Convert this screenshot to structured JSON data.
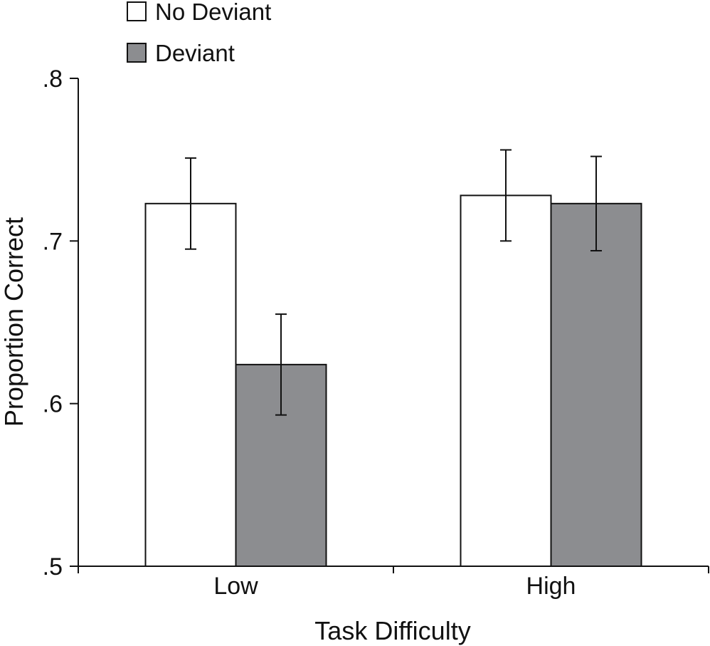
{
  "chart_data": {
    "type": "bar",
    "title": "",
    "xlabel": "Task Difficulty",
    "ylabel": "Proportion Correct",
    "ylim": [
      0.5,
      0.8
    ],
    "yticks": [
      0.5,
      0.6,
      0.7,
      0.8
    ],
    "ytick_labels": [
      ".5",
      ".6",
      ".7",
      ".8"
    ],
    "categories": [
      "Low",
      "High"
    ],
    "series": [
      {
        "name": "No Deviant",
        "color": "#ffffff",
        "values": [
          0.723,
          0.728
        ],
        "error": [
          0.028,
          0.028
        ]
      },
      {
        "name": "Deviant",
        "color": "#8c8d90",
        "values": [
          0.624,
          0.723
        ],
        "error": [
          0.031,
          0.029
        ]
      }
    ],
    "legend": {
      "position": "top-left",
      "entries": [
        "No Deviant",
        "Deviant"
      ]
    },
    "grid": false
  }
}
